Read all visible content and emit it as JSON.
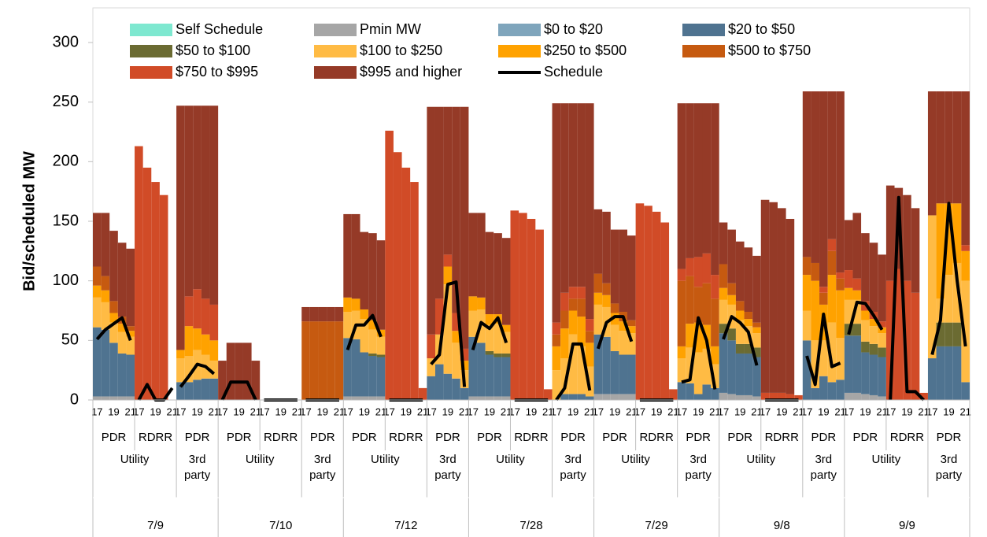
{
  "chart_data": {
    "type": "bar",
    "stacked": true,
    "ylabel": "Bid/scheduled MW",
    "ylim": [
      0,
      300
    ],
    "yticks": [
      0,
      50,
      100,
      150,
      200,
      250,
      300
    ],
    "categories": [
      "17",
      null,
      "19",
      null,
      "21",
      "17",
      null,
      "19",
      null,
      "21",
      "17",
      null,
      "19",
      null,
      "21",
      "17",
      null,
      "19",
      null,
      "21",
      "17",
      null,
      "19",
      null,
      "21",
      "17",
      null,
      "19",
      null,
      "21",
      "17",
      null,
      "19",
      null,
      "21",
      "17",
      null,
      "19",
      null,
      "21",
      "17",
      null,
      "19",
      null,
      "21",
      "17",
      null,
      "19",
      null,
      "21",
      "17",
      null,
      "19",
      null,
      "21",
      "17",
      null,
      "19",
      null,
      "21",
      "17",
      null,
      "19",
      null,
      "21",
      "17",
      null,
      "19",
      null,
      "21",
      "17",
      null,
      "19",
      null,
      "21",
      "17",
      null,
      "19",
      null,
      "21",
      "17",
      null,
      "19",
      null,
      "21",
      "17",
      null,
      "19",
      null,
      "21",
      "17",
      null,
      "19",
      null,
      "21",
      "17",
      null,
      "19",
      null,
      "21",
      "17",
      null,
      "19",
      null,
      "21"
    ],
    "programs": [
      "PDR",
      "RDRR",
      "PDR",
      "PDR",
      "RDRR",
      "PDR",
      "PDR",
      "RDRR",
      "PDR",
      "PDR",
      "RDRR",
      "PDR",
      "PDR",
      "RDRR",
      "PDR",
      "PDR",
      "RDRR",
      "PDR",
      "PDR",
      "RDRR",
      "PDR"
    ],
    "owners": [
      "Utility",
      "3rd party",
      "Utility",
      "3rd party",
      "Utility",
      "3rd party",
      "Utility",
      "3rd party",
      "Utility",
      "3rd party",
      "Utility",
      "3rd party",
      "Utility",
      "3rd party"
    ],
    "dates": [
      "7/9",
      "7/10",
      "7/12",
      "7/28",
      "7/29",
      "9/8",
      "9/9"
    ],
    "series": [
      {
        "name": "Self Schedule",
        "color": "#7ee8d0",
        "values": [
          0,
          0,
          0,
          0,
          0,
          0,
          0,
          0,
          0,
          0,
          0,
          0,
          0,
          0,
          0,
          0,
          0,
          0,
          0,
          0,
          0,
          0,
          0,
          0,
          0,
          0,
          0,
          0,
          0,
          0,
          0,
          0,
          0,
          0,
          0,
          0,
          0,
          0,
          0,
          0,
          0,
          0,
          0,
          0,
          0,
          0,
          0,
          0,
          0,
          0,
          0,
          0,
          0,
          0,
          0,
          0,
          0,
          0,
          0,
          0,
          0,
          0,
          0,
          0,
          0,
          0,
          0,
          0,
          0,
          0,
          0,
          0,
          0,
          0,
          0,
          0,
          0,
          0,
          0,
          0,
          0,
          0,
          0,
          0,
          0,
          0,
          0,
          0,
          0,
          0,
          0,
          0,
          0,
          0,
          0,
          0,
          0,
          0,
          0,
          0,
          0,
          0,
          0,
          0,
          0
        ]
      },
      {
        "name": "Pmin MW",
        "color": "#a6a6a6",
        "values": [
          3,
          3,
          3,
          3,
          3,
          0,
          0,
          0,
          0,
          0,
          0,
          0,
          0,
          0,
          0,
          0,
          0,
          0,
          0,
          0,
          0,
          0,
          0,
          0,
          0,
          0,
          0,
          0,
          0,
          0,
          3,
          3,
          3,
          3,
          3,
          0,
          0,
          0,
          0,
          0,
          0,
          0,
          0,
          0,
          0,
          3,
          3,
          3,
          3,
          3,
          0,
          0,
          0,
          0,
          0,
          0,
          0,
          0,
          0,
          0,
          5,
          5,
          5,
          5,
          5,
          0,
          0,
          0,
          0,
          0,
          0,
          0,
          0,
          0,
          0,
          6,
          5,
          4,
          4,
          3,
          0,
          0,
          0,
          0,
          0,
          0,
          0,
          0,
          0,
          0,
          6,
          6,
          5,
          4,
          3,
          0,
          0,
          0,
          0,
          0,
          0,
          0,
          0,
          0,
          0
        ]
      },
      {
        "name": "$0 to $20",
        "color": "#7fa5bc",
        "values": [
          0,
          0,
          0,
          0,
          0,
          0,
          0,
          0,
          0,
          0,
          0,
          0,
          0,
          0,
          0,
          0,
          0,
          0,
          0,
          0,
          0,
          0,
          0,
          0,
          0,
          0,
          0,
          0,
          0,
          0,
          0,
          0,
          0,
          0,
          0,
          0,
          0,
          0,
          0,
          0,
          0,
          0,
          0,
          0,
          0,
          0,
          0,
          0,
          0,
          0,
          0,
          0,
          0,
          0,
          0,
          0,
          0,
          0,
          0,
          0,
          0,
          0,
          0,
          0,
          0,
          0,
          0,
          0,
          0,
          0,
          0,
          0,
          0,
          0,
          0,
          0,
          0,
          0,
          0,
          0,
          0,
          0,
          0,
          0,
          0,
          0,
          0,
          0,
          0,
          0,
          0,
          0,
          0,
          0,
          0,
          0,
          0,
          0,
          0,
          0,
          0,
          0,
          0,
          0,
          0
        ]
      },
      {
        "name": "$20 to $50",
        "color": "#4f7390",
        "values": [
          58,
          56,
          45,
          36,
          35,
          0,
          0,
          0,
          0,
          0,
          15,
          15,
          17,
          18,
          18,
          0,
          0,
          0,
          0,
          0,
          0,
          0,
          0,
          0,
          0,
          0,
          0,
          0,
          0,
          0,
          49,
          48,
          37,
          34,
          33,
          0,
          0,
          0,
          0,
          0,
          20,
          30,
          22,
          18,
          10,
          50,
          45,
          35,
          33,
          33,
          0,
          0,
          0,
          0,
          0,
          0,
          5,
          5,
          5,
          3,
          50,
          48,
          36,
          33,
          33,
          0,
          0,
          0,
          0,
          0,
          15,
          14,
          5,
          13,
          10,
          50,
          45,
          35,
          35,
          33,
          0,
          0,
          0,
          0,
          0,
          50,
          10,
          20,
          15,
          17,
          48,
          48,
          35,
          34,
          33,
          0,
          0,
          0,
          0,
          0,
          35,
          45,
          45,
          45,
          15
        ]
      },
      {
        "name": "$50 to $100",
        "color": "#6b6b32",
        "values": [
          0,
          0,
          0,
          0,
          0,
          0,
          0,
          0,
          0,
          0,
          0,
          0,
          0,
          0,
          0,
          0,
          0,
          0,
          0,
          0,
          0,
          0,
          0,
          0,
          0,
          0,
          0,
          0,
          0,
          0,
          0,
          0,
          0,
          2,
          2,
          0,
          0,
          0,
          0,
          0,
          0,
          0,
          0,
          0,
          0,
          0,
          0,
          3,
          3,
          3,
          0,
          0,
          0,
          0,
          0,
          0,
          0,
          0,
          0,
          0,
          0,
          0,
          0,
          0,
          0,
          0,
          0,
          0,
          0,
          0,
          0,
          0,
          0,
          0,
          0,
          8,
          10,
          8,
          8,
          8,
          0,
          0,
          0,
          0,
          0,
          0,
          0,
          0,
          0,
          0,
          10,
          10,
          9,
          9,
          8,
          0,
          0,
          0,
          0,
          0,
          0,
          20,
          20,
          20,
          0
        ]
      },
      {
        "name": "$100 to $250",
        "color": "#ffbb44",
        "values": [
          25,
          23,
          17,
          18,
          15,
          0,
          0,
          0,
          0,
          0,
          20,
          22,
          25,
          20,
          15,
          0,
          0,
          0,
          0,
          0,
          0,
          0,
          0,
          0,
          0,
          0,
          0,
          0,
          0,
          0,
          22,
          24,
          28,
          20,
          15,
          0,
          0,
          0,
          0,
          0,
          15,
          25,
          75,
          30,
          15,
          22,
          28,
          22,
          25,
          18,
          0,
          0,
          0,
          0,
          0,
          25,
          30,
          50,
          40,
          25,
          25,
          25,
          22,
          20,
          18,
          0,
          0,
          0,
          0,
          0,
          20,
          30,
          35,
          30,
          20,
          20,
          20,
          20,
          15,
          12,
          0,
          0,
          0,
          0,
          0,
          25,
          40,
          30,
          50,
          35,
          20,
          20,
          18,
          15,
          12,
          0,
          0,
          0,
          0,
          0,
          120,
          20,
          40,
          50,
          85
        ]
      },
      {
        "name": "$250 to $500",
        "color": "#ffa200",
        "values": [
          10,
          10,
          8,
          7,
          5,
          0,
          0,
          0,
          0,
          0,
          7,
          25,
          18,
          17,
          17,
          0,
          0,
          0,
          0,
          0,
          0,
          0,
          0,
          0,
          0,
          0,
          0,
          0,
          0,
          0,
          12,
          10,
          8,
          8,
          6,
          0,
          0,
          0,
          0,
          0,
          0,
          0,
          15,
          10,
          8,
          12,
          10,
          9,
          8,
          6,
          0,
          0,
          0,
          0,
          0,
          20,
          25,
          20,
          25,
          20,
          10,
          10,
          10,
          8,
          6,
          0,
          0,
          0,
          0,
          0,
          10,
          20,
          25,
          20,
          15,
          10,
          8,
          8,
          6,
          5,
          0,
          0,
          0,
          0,
          0,
          30,
          50,
          30,
          40,
          40,
          10,
          8,
          8,
          6,
          5,
          0,
          0,
          0,
          0,
          0,
          0,
          80,
          60,
          50,
          25
        ]
      },
      {
        "name": "$500 to $750",
        "color": "#c65a10",
        "values": [
          16,
          12,
          10,
          6,
          4,
          0,
          0,
          0,
          0,
          0,
          0,
          0,
          0,
          0,
          0,
          0,
          0,
          0,
          0,
          0,
          0,
          0,
          0,
          0,
          0,
          66,
          66,
          66,
          66,
          66,
          0,
          0,
          0,
          0,
          0,
          0,
          0,
          0,
          0,
          0,
          0,
          0,
          0,
          0,
          0,
          0,
          0,
          0,
          0,
          0,
          0,
          0,
          0,
          0,
          0,
          10,
          15,
          10,
          15,
          10,
          16,
          10,
          8,
          8,
          5,
          0,
          0,
          0,
          0,
          0,
          55,
          40,
          30,
          35,
          40,
          20,
          10,
          8,
          6,
          4,
          0,
          0,
          0,
          0,
          0,
          15,
          15,
          10,
          20,
          10,
          0,
          0,
          0,
          0,
          0,
          0,
          0,
          0,
          0,
          0,
          0,
          0,
          0,
          0,
          0
        ]
      },
      {
        "name": "$750 to $995",
        "color": "#d14b27",
        "values": [
          0,
          0,
          0,
          0,
          0,
          213,
          195,
          183,
          172,
          0,
          0,
          25,
          33,
          30,
          30,
          0,
          0,
          0,
          0,
          0,
          0,
          0,
          0,
          0,
          0,
          0,
          0,
          0,
          0,
          0,
          0,
          0,
          0,
          0,
          0,
          226,
          208,
          195,
          183,
          10,
          20,
          30,
          10,
          15,
          10,
          0,
          0,
          0,
          0,
          0,
          159,
          157,
          152,
          143,
          9,
          10,
          15,
          10,
          10,
          10,
          0,
          0,
          0,
          0,
          0,
          165,
          163,
          158,
          149,
          9,
          10,
          15,
          25,
          25,
          20,
          0,
          0,
          0,
          0,
          0,
          6,
          6,
          6,
          5,
          4,
          0,
          0,
          5,
          10,
          5,
          15,
          10,
          8,
          6,
          5,
          100,
          110,
          100,
          90,
          6,
          0,
          0,
          0,
          0,
          5
        ]
      },
      {
        "name": "$995 and higher",
        "color": "#953a27",
        "values": [
          45,
          53,
          59,
          62,
          65,
          0,
          0,
          0,
          0,
          0,
          205,
          160,
          154,
          162,
          167,
          33,
          48,
          48,
          48,
          33,
          0,
          0,
          0,
          0,
          0,
          12,
          12,
          12,
          12,
          12,
          70,
          71,
          65,
          73,
          75,
          0,
          0,
          0,
          0,
          0,
          191,
          161,
          124,
          173,
          203,
          70,
          71,
          69,
          68,
          73,
          0,
          0,
          0,
          0,
          0,
          184,
          159,
          154,
          154,
          181,
          54,
          60,
          62,
          69,
          71,
          0,
          0,
          0,
          0,
          0,
          139,
          130,
          129,
          126,
          144,
          35,
          45,
          50,
          54,
          56,
          162,
          160,
          155,
          147,
          0,
          139,
          144,
          164,
          124,
          152,
          42,
          55,
          57,
          58,
          56,
          80,
          68,
          72,
          71,
          0,
          104,
          94,
          94,
          94,
          129
        ]
      },
      {
        "name": "Schedule",
        "type": "line",
        "color": "#000000",
        "values": [
          51,
          59,
          64,
          69,
          50,
          0,
          13,
          0,
          0,
          10,
          11,
          20,
          30,
          28,
          22,
          0,
          15,
          15,
          15,
          0,
          0,
          0,
          0,
          0,
          0,
          0,
          0,
          0,
          0,
          0,
          42,
          63,
          63,
          71,
          53,
          0,
          0,
          0,
          0,
          0,
          30,
          38,
          97,
          99,
          11,
          42,
          65,
          60,
          69,
          48,
          0,
          0,
          0,
          0,
          0,
          0,
          10,
          47,
          47,
          8,
          43,
          65,
          70,
          70,
          49,
          0,
          0,
          0,
          0,
          0,
          15,
          17,
          69,
          50,
          9,
          51,
          70,
          65,
          57,
          29,
          0,
          0,
          0,
          0,
          0,
          37,
          13,
          72,
          28,
          31,
          55,
          82,
          81,
          71,
          59,
          0,
          170,
          7,
          7,
          0,
          38,
          67,
          165,
          100,
          45
        ]
      }
    ]
  }
}
